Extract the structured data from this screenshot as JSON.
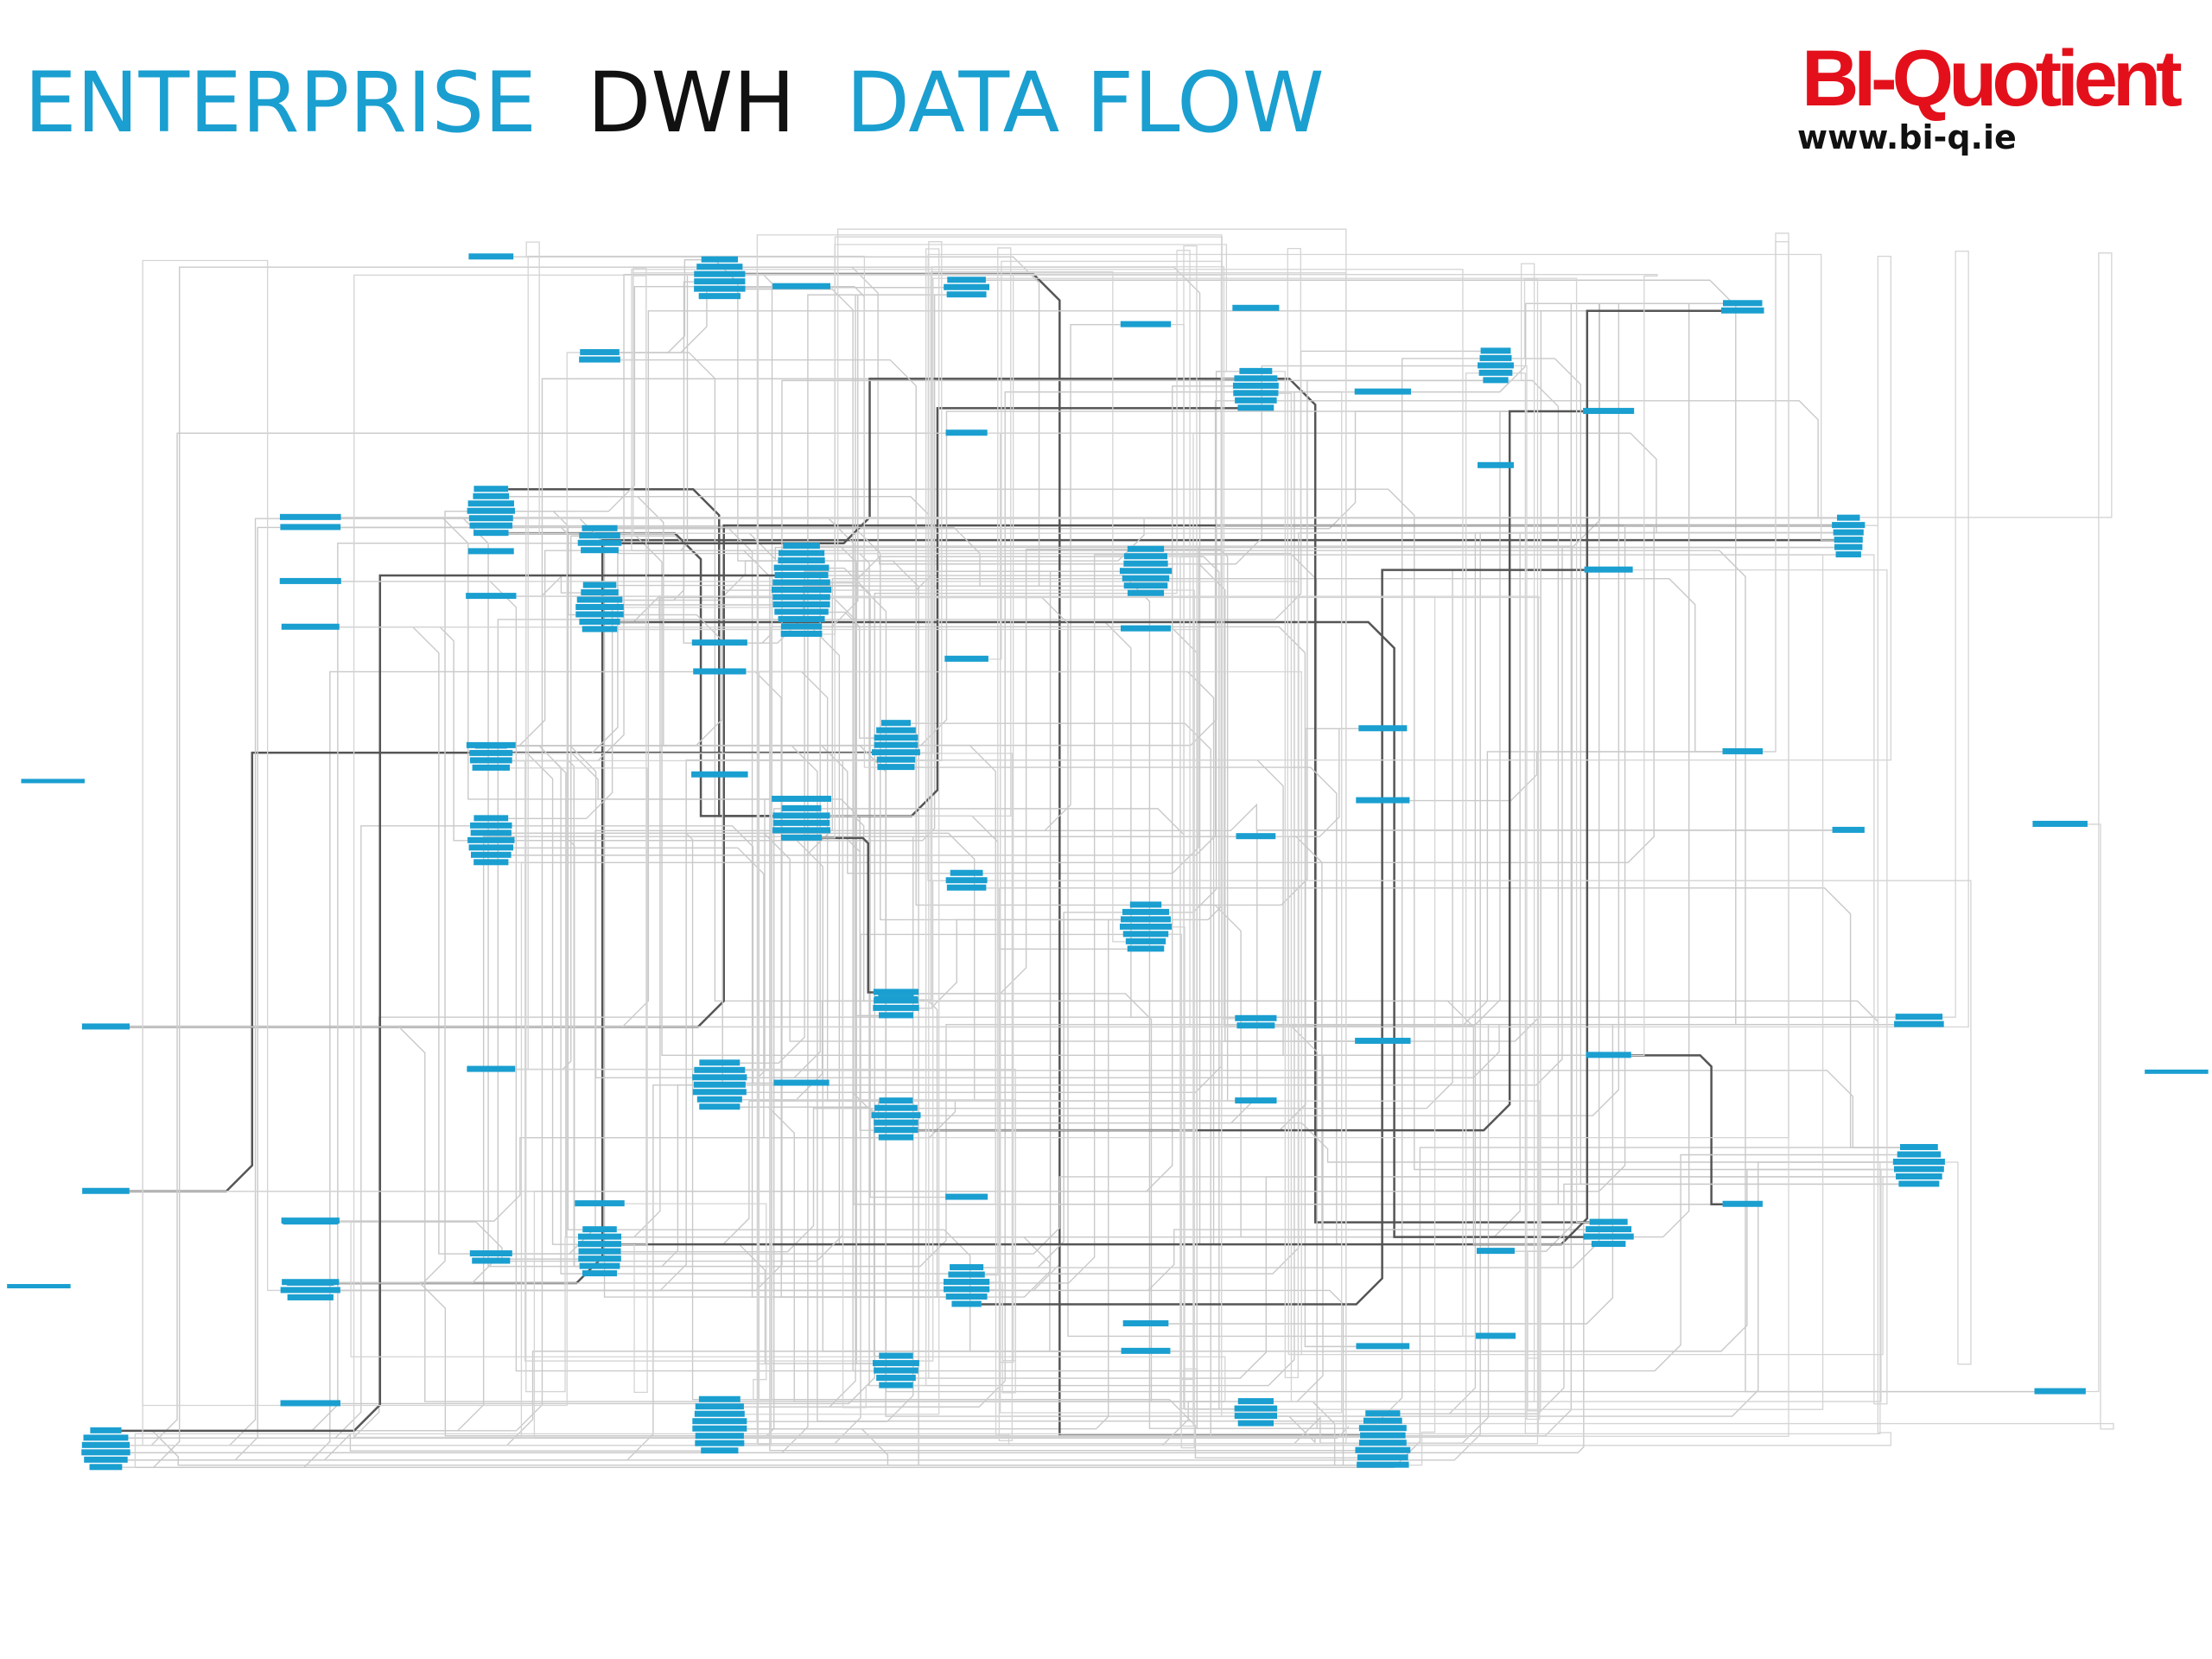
{
  "header": {
    "title": {
      "part1": "ENTERPRISE",
      "part2": "DWH",
      "part3": "DATA FLOW"
    },
    "logo": {
      "brand": "BI-Quotient",
      "url": "www.bi-q.ie"
    }
  }
}
